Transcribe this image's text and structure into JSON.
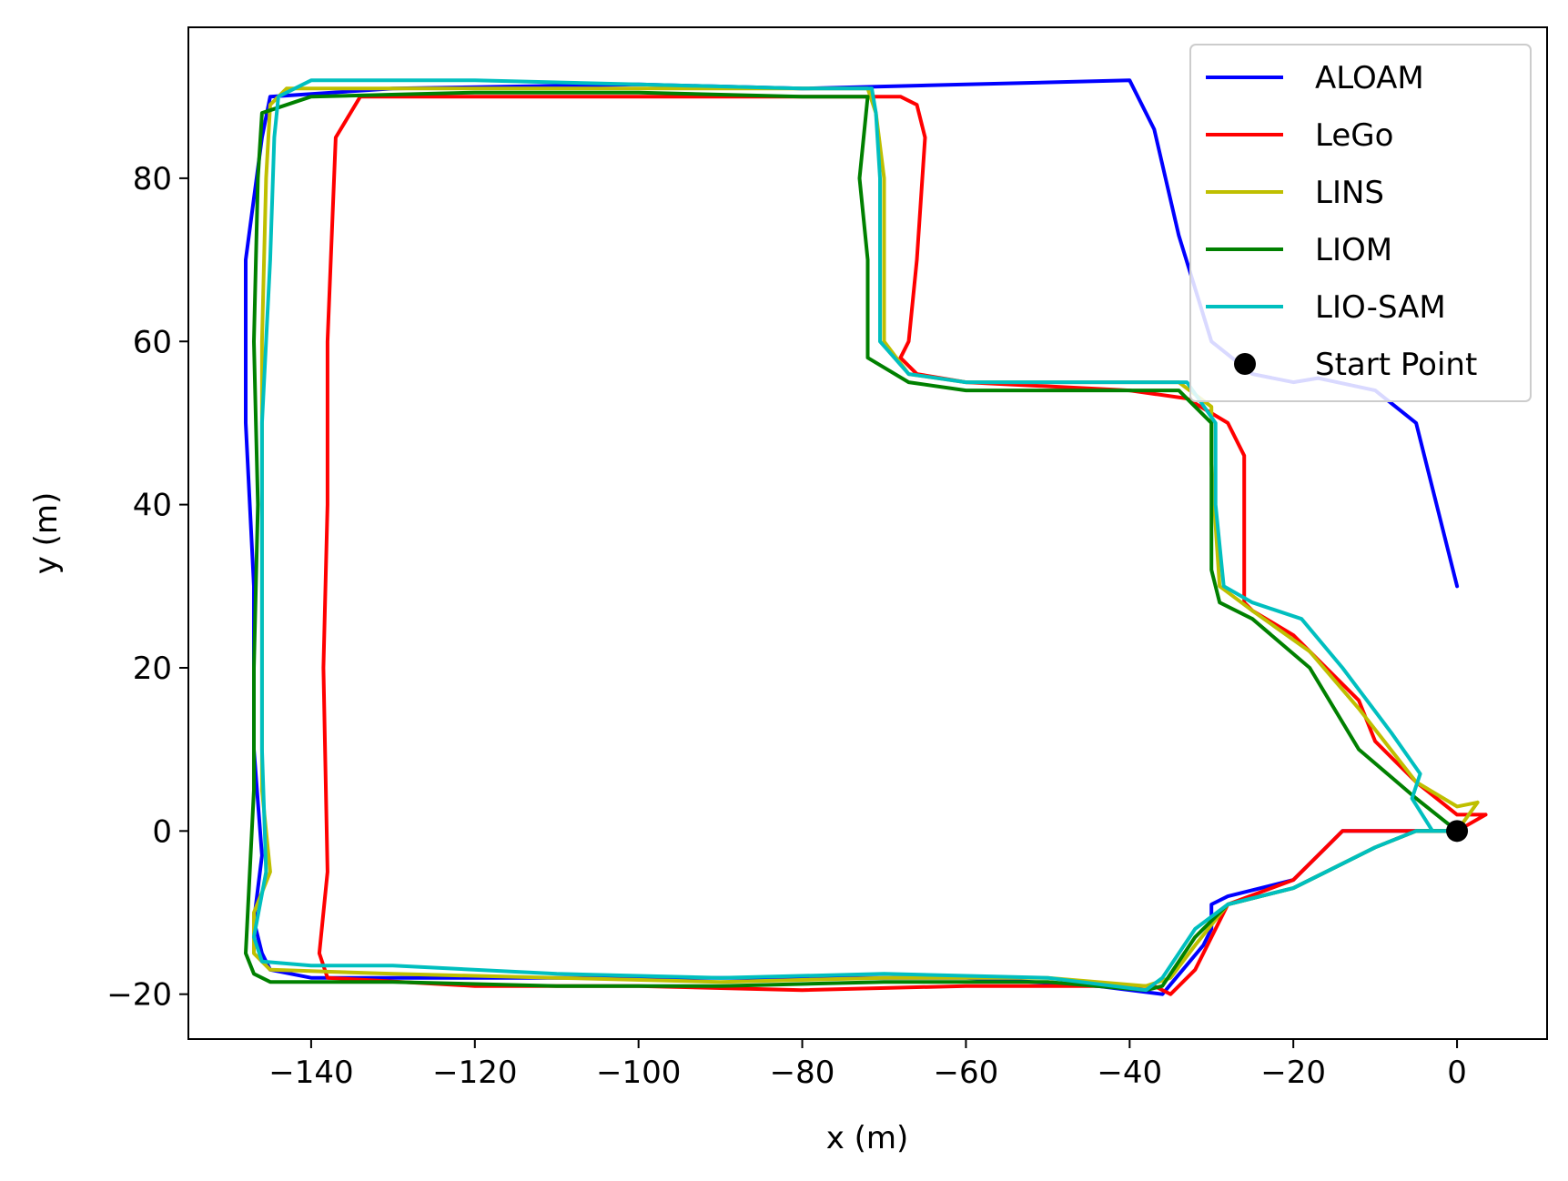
{
  "chart_data": {
    "type": "line",
    "title": "",
    "xlabel": "x (m)",
    "ylabel": "y (m)",
    "xlim": [
      -155,
      11
    ],
    "ylim": [
      -25.5,
      98.5
    ],
    "xticks": [
      -140,
      -120,
      -100,
      -80,
      -60,
      -40,
      -20,
      0
    ],
    "yticks": [
      -20,
      0,
      20,
      40,
      60,
      80
    ],
    "grid": false,
    "legend_position": "top-right",
    "series": [
      {
        "name": "ALOAM",
        "color": "#0000ff",
        "x": [
          0,
          -2,
          -3,
          -5,
          -10,
          -14,
          -16,
          -20,
          -28,
          -30,
          -30,
          -31,
          -36,
          -44,
          -60,
          -70,
          -72,
          -71,
          -72,
          -73,
          -72,
          -85,
          -100,
          -120,
          -140,
          -145,
          -146,
          -147,
          -146,
          -147,
          -147,
          -148,
          -148,
          -146,
          -145,
          -130,
          -100,
          -80,
          -60,
          -40,
          -37,
          -34,
          -30,
          -25,
          -20,
          -17,
          -10,
          -5,
          0
        ],
        "y": [
          0,
          0,
          0,
          0,
          0,
          0,
          -2,
          -6,
          -8,
          -9,
          -12,
          -14,
          -20,
          -19,
          -18,
          -18,
          -18,
          -18,
          -18,
          -18,
          -18,
          -18,
          -18,
          -18,
          -18,
          -17,
          -15,
          -11,
          -3,
          10,
          30,
          50,
          70,
          85,
          90,
          91,
          91.5,
          91,
          91.5,
          92,
          86,
          73,
          60,
          56,
          55,
          55.5,
          54,
          50,
          30
        ]
      },
      {
        "name": "LeGo",
        "color": "#ff0000",
        "x": [
          3.5,
          0,
          -5,
          -10,
          -14,
          -16,
          -20,
          -28,
          -32,
          -35,
          -37,
          -60,
          -80,
          -100,
          -120,
          -138,
          -139,
          -138,
          -138.5,
          -138,
          -138,
          -137,
          -134,
          -132,
          -110,
          -90,
          -75,
          -70,
          -68,
          -66,
          -65,
          -66,
          -67,
          -68,
          -66,
          -60,
          -40,
          -33,
          -28,
          -26,
          -26,
          -26,
          -25,
          -20,
          -12,
          -10,
          -5,
          0,
          3.5
        ],
        "y": [
          2,
          0,
          0,
          0,
          0,
          -2,
          -6,
          -9,
          -17,
          -20,
          -19,
          -19,
          -19.5,
          -19,
          -19,
          -18,
          -15,
          -5,
          20,
          40,
          60,
          85,
          90,
          90,
          90,
          90,
          90,
          90,
          90,
          89,
          85,
          70,
          60,
          58,
          56,
          55,
          54,
          53,
          50,
          46,
          30,
          28,
          27,
          24,
          16,
          11,
          6,
          2,
          2
        ]
      },
      {
        "name": "LINS",
        "color": "#bfbf00",
        "x": [
          2.5,
          0,
          -5,
          -12,
          -18,
          -25,
          -29,
          -30,
          -30,
          -34,
          -45,
          -60,
          -67,
          -70,
          -70,
          -71,
          -72,
          -90,
          -110,
          -130,
          -143,
          -145,
          -145.5,
          -146,
          -146,
          -146,
          -146,
          -145,
          -147,
          -147,
          -145,
          -130,
          -110,
          -90,
          -70,
          -50,
          -38,
          -35,
          -32,
          -28,
          -20,
          -16,
          -10,
          -5,
          0,
          2.5
        ],
        "y": [
          3.5,
          3,
          6,
          15,
          22,
          27,
          30,
          45,
          52,
          55,
          55,
          55,
          56,
          60,
          80,
          88,
          91,
          91,
          91,
          91,
          91,
          89,
          80,
          60,
          40,
          20,
          5,
          -5,
          -10,
          -15,
          -17,
          -17.5,
          -18,
          -18.5,
          -18,
          -18,
          -19,
          -18,
          -14,
          -9,
          -7,
          -5,
          -2,
          0,
          0,
          3.5
        ]
      },
      {
        "name": "LIOM",
        "color": "#008000",
        "x": [
          0,
          -5,
          -12,
          -18,
          -25,
          -29,
          -30,
          -30,
          -34,
          -45,
          -60,
          -67,
          -72,
          -72,
          -73,
          -72,
          -80,
          -100,
          -120,
          -140,
          -146,
          -146.5,
          -147,
          -146.5,
          -147,
          -147,
          -148,
          -147,
          -145,
          -130,
          -110,
          -90,
          -70,
          -50,
          -38,
          -36,
          -32,
          -28,
          -20,
          -16,
          -10,
          -5,
          0
        ],
        "y": [
          0,
          4,
          10,
          20,
          26,
          28,
          32,
          50,
          54,
          54,
          54,
          55,
          58,
          70,
          80,
          90,
          90,
          90.5,
          90.5,
          90,
          88,
          80,
          60,
          40,
          20,
          5,
          -15,
          -17.5,
          -18.5,
          -18.5,
          -19,
          -19,
          -18.5,
          -18.5,
          -19.5,
          -19,
          -13,
          -9,
          -7,
          -5,
          -2,
          0,
          0
        ]
      },
      {
        "name": "LIO-SAM",
        "color": "#00bfbf",
        "x": [
          0,
          -3,
          -5.5,
          -4.5,
          -8,
          -14,
          -19,
          -25,
          -28.5,
          -29.5,
          -29.5,
          -33,
          -45,
          -60,
          -67,
          -70.5,
          -70.5,
          -71,
          -71.5,
          -80,
          -100,
          -120,
          -140,
          -144,
          -144.5,
          -145,
          -146,
          -146,
          -146,
          -145.5,
          -147,
          -146,
          -140,
          -130,
          -110,
          -90,
          -70,
          -50,
          -38,
          -36,
          -32,
          -28,
          -20,
          -16,
          -10,
          -5,
          0
        ],
        "y": [
          0,
          0,
          4,
          7,
          12,
          20,
          26,
          28,
          30,
          40,
          50,
          55,
          55,
          55,
          56,
          60,
          80,
          88,
          91,
          91,
          91.5,
          92,
          92,
          90,
          85,
          70,
          50,
          30,
          10,
          -5,
          -13,
          -16,
          -16.5,
          -16.5,
          -17.5,
          -18,
          -17.5,
          -18,
          -19.5,
          -18,
          -12,
          -9,
          -7,
          -5,
          -2,
          0,
          0
        ]
      }
    ],
    "start_point": {
      "name": "Start Point",
      "color": "#000000",
      "x": 0,
      "y": 0
    }
  }
}
